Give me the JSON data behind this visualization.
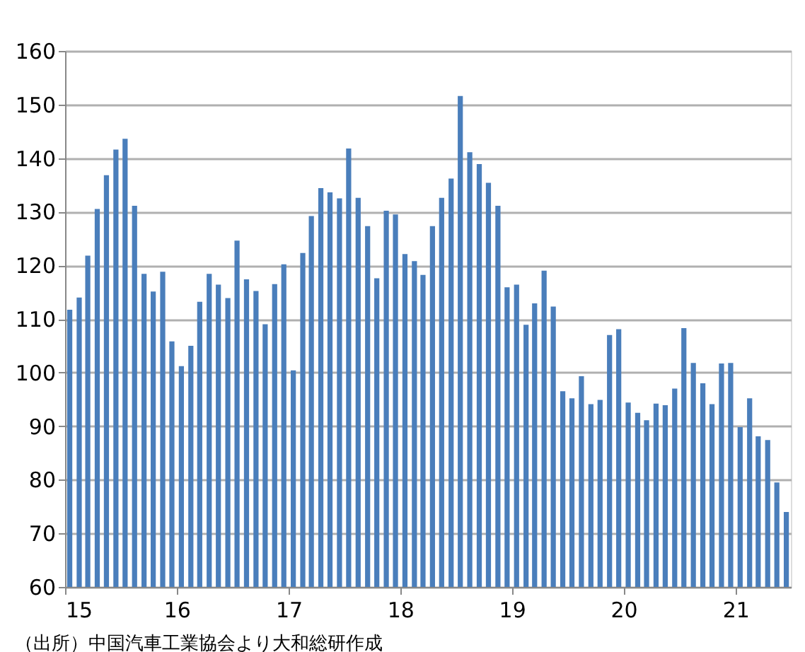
{
  "chart_data": {
    "type": "bar",
    "x": [
      "2015-01",
      "2015-02",
      "2015-03",
      "2015-04",
      "2015-05",
      "2015-06",
      "2015-07",
      "2015-08",
      "2015-09",
      "2015-10",
      "2015-11",
      "2015-12",
      "2016-01",
      "2016-02",
      "2016-03",
      "2016-04",
      "2016-05",
      "2016-06",
      "2016-07",
      "2016-08",
      "2016-09",
      "2016-10",
      "2016-11",
      "2016-12",
      "2017-01",
      "2017-02",
      "2017-03",
      "2017-04",
      "2017-05",
      "2017-06",
      "2017-07",
      "2017-08",
      "2017-09",
      "2017-10",
      "2017-11",
      "2017-12",
      "2018-01",
      "2018-02",
      "2018-03",
      "2018-04",
      "2018-05",
      "2018-06",
      "2018-07",
      "2018-08",
      "2018-09",
      "2018-10",
      "2018-11",
      "2018-12",
      "2019-01",
      "2019-02",
      "2019-03",
      "2019-04",
      "2019-05",
      "2019-06",
      "2019-07",
      "2019-08",
      "2019-09",
      "2019-10",
      "2019-11",
      "2019-12",
      "2020-01",
      "2020-02",
      "2020-03",
      "2020-04",
      "2020-05",
      "2020-06",
      "2020-07",
      "2020-08",
      "2020-09",
      "2020-10",
      "2020-11",
      "2020-12",
      "2021-01",
      "2021-02",
      "2021-03",
      "2021-04",
      "2021-05",
      "2021-06"
    ],
    "values": [
      111.7,
      114.0,
      121.8,
      130.5,
      136.8,
      141.6,
      143.6,
      131.1,
      118.4,
      115.1,
      118.8,
      105.8,
      101.2,
      105.0,
      113.2,
      118.4,
      116.4,
      113.9,
      124.6,
      117.4,
      115.2,
      109.0,
      116.5,
      120.2,
      100.4,
      122.3,
      129.2,
      134.4,
      133.6,
      132.5,
      141.8,
      132.6,
      127.3,
      117.6,
      130.2,
      129.5,
      122.1,
      120.8,
      118.2,
      127.3,
      132.6,
      136.2,
      151.6,
      141.1,
      138.9,
      135.4,
      131.1,
      115.9,
      116.4,
      108.9,
      112.9,
      119.0,
      112.3,
      96.5,
      95.2,
      99.3,
      94.1,
      94.9,
      107.0,
      108.1,
      94.4,
      92.5,
      91.1,
      94.2,
      93.9,
      97.0,
      108.3,
      101.8,
      98.0,
      94.1,
      101.7,
      101.8,
      89.8,
      95.2,
      88.1,
      87.4,
      79.5,
      74.0
    ],
    "color": "#4a7ebb",
    "xlim": [
      "2015-01",
      "2021-07"
    ],
    "xticks": [
      {
        "value": "2015-01",
        "label": "15"
      },
      {
        "value": "2016-01",
        "label": "16"
      },
      {
        "value": "2017-01",
        "label": "17"
      },
      {
        "value": "2018-01",
        "label": "18"
      },
      {
        "value": "2019-01",
        "label": "19"
      },
      {
        "value": "2020-01",
        "label": "20"
      },
      {
        "value": "2021-01",
        "label": "21"
      }
    ],
    "ylim": [
      60,
      160
    ],
    "yticks": [
      60,
      70,
      80,
      90,
      100,
      110,
      120,
      130,
      140,
      150,
      160
    ],
    "grid": "y",
    "annotations": [
      "（出所）中国汽車工業協会より大和総研作成"
    ]
  }
}
